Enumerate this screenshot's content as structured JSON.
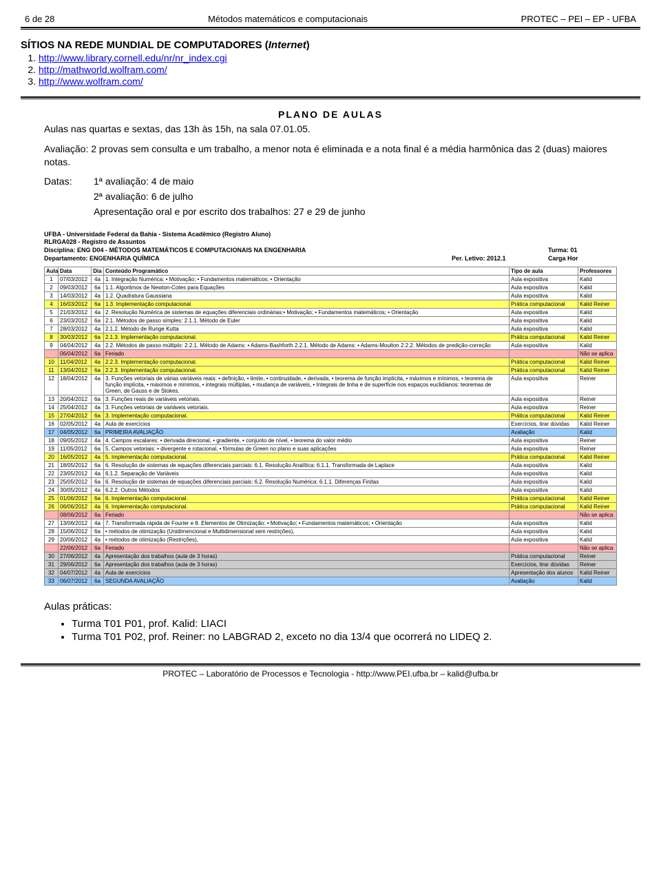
{
  "header": {
    "page_num": "6 de 28",
    "title": "Métodos matemáticos e computacionais",
    "right": "PROTEC – PEI – EP - UFBA"
  },
  "sites_section": {
    "title_prefix": "SÍTIOS NA REDE MUNDIAL DE COMPUTADORES (",
    "title_italic": "Internet",
    "title_suffix": ")",
    "links": [
      "http://www.library.cornell.edu/nr/nr_index.cgi",
      "http://mathworld.wolfram.com/",
      "http://www.wolfram.com/"
    ]
  },
  "plano": {
    "title": "PLANO DE AULAS",
    "p1": "Aulas nas quartas e sextas, das 13h às 15h, na sala 07.01.05.",
    "p2": "Avaliação: 2 provas sem consulta e um trabalho, a menor nota é eliminada e a nota final é a média harmônica das 2 (duas) maiores notas.",
    "datas_label": "Datas:",
    "datas_lines": [
      "1ª avaliação: 4 de maio",
      "2ª avaliação: 6 de julho",
      "Apresentação oral e por escrito dos trabalhos: 27 e 29 de junho"
    ]
  },
  "meta": {
    "l1": "UFBA - Universidade Federal da Bahia - Sistema Acadêmico (Registro Aluno)",
    "l2": "RLRGA028 - Registro de Assuntos",
    "l3_left": "Disciplina: ENG D04 - MÉTODOS MATEMÁTICOS E COMPUTACIONAIS NA ENGENHARIA",
    "l3_right": "Turma: 01",
    "l4_left": "Departamento: ENGENHARIA QUÍMICA",
    "l4_mid": "Per. Letivo: 2012.1",
    "l4_right": "Carga Hor"
  },
  "table": {
    "headers": [
      "Aula",
      "Data",
      "Dia",
      "Conteúdo Programático",
      "Tipo de aula",
      "Professores"
    ],
    "colors": {
      "none": "#ffffff",
      "yellow": "#ffff66",
      "pink": "#ffb3b3",
      "blue": "#99ccff",
      "gray": "#cccccc"
    },
    "rows": [
      {
        "a": "1",
        "d": "07/03/2012",
        "dia": "4a",
        "c": "1. Integração Numérica: • Motivação; • Fundamentos matemáticos; • Orientação",
        "t": "Aula expositiva",
        "p": "Kalid",
        "bg": "none"
      },
      {
        "a": "2",
        "d": "09/03/2012",
        "dia": "6a",
        "c": "1.1. Algoritmos de Newton-Cotes para Equações",
        "t": "Aula expositiva",
        "p": "Kalid",
        "bg": "none"
      },
      {
        "a": "3",
        "d": "14/03/2012",
        "dia": "4a",
        "c": "1.2. Quadratura Gaussiana",
        "t": "Aula expositiva",
        "p": "Kalid",
        "bg": "none"
      },
      {
        "a": "4",
        "d": "16/03/2012",
        "dia": "6a",
        "c": "1.3. Implementação computacional",
        "t": "Prática computacional",
        "p": "Kalid Reiner",
        "bg": "yellow"
      },
      {
        "a": "5",
        "d": "21/03/2012",
        "dia": "4a",
        "c": "2. Resolução Numérica de sistemas de equações diferenciais ordinárias:• Motivação; • Fundamentos matemáticos; • Orientação",
        "t": "Aula expositiva",
        "p": "Kalid",
        "bg": "none"
      },
      {
        "a": "6",
        "d": "23/03/2012",
        "dia": "6a",
        "c": "2.1. Métodos de passo simples: 2.1.1. Método de Euler",
        "t": "Aula expositiva",
        "p": "Kalid",
        "bg": "none"
      },
      {
        "a": "7",
        "d": "28/03/2012",
        "dia": "4a",
        "c": "2.1.2. Método de Runge Kutta",
        "t": "Aula expositiva",
        "p": "Kalid",
        "bg": "none"
      },
      {
        "a": "8",
        "d": "30/03/2012",
        "dia": "6a",
        "c": "2.1.3. Implementação computacional.",
        "t": "Prática computacional",
        "p": "Kalid Reiner",
        "bg": "yellow"
      },
      {
        "a": "9",
        "d": "04/04/2012",
        "dia": "4a",
        "c": "2.2. Métodos de passo múltiplo: 2.2.1. Método de Adams: • Adams-Bashforth 2.2.1. Método de Adams: • Adams-Moulton 2.2.2. Métodos de predição-correção",
        "t": "Aula expositiva",
        "p": "Kalid",
        "bg": "none"
      },
      {
        "a": "",
        "d": "06/04/2012",
        "dia": "6a",
        "c": "Feriado",
        "t": "",
        "p": "Não se aplica",
        "bg": "pink"
      },
      {
        "a": "10",
        "d": "11/04/2012",
        "dia": "4a",
        "c": "2.2.3. Implementação computacional.",
        "t": "Prática computacional",
        "p": "Kalid Reiner",
        "bg": "yellow"
      },
      {
        "a": "11",
        "d": "13/04/2012",
        "dia": "6a",
        "c": "2.2.3. Implementação computacional.",
        "t": "Prática computacional",
        "p": "Kalid Reiner",
        "bg": "yellow"
      },
      {
        "a": "12",
        "d": "18/04/2012",
        "dia": "4a",
        "c": "3. Funções vetoriais de várias variáveis reais: • definição, • limite, • continuidade, • derivada, • teorema de função implícita, • máximos e mínimos, • teorema de função implícita, • máximos e mínimos, • integrais múltiplas, • mudança de variáveis, • Integrais de linha e de superfície nos espaços euclidianos: teoremas de Green, de Gauss e de Stokes.",
        "t": "Aula expositiva",
        "p": "Reiner",
        "bg": "none"
      },
      {
        "a": "13",
        "d": "20/04/2012",
        "dia": "6a",
        "c": "3. Funções reais de variáveis vetoriais.",
        "t": "Aula expositiva",
        "p": "Reiner",
        "bg": "none"
      },
      {
        "a": "14",
        "d": "25/04/2012",
        "dia": "4a",
        "c": "3. Funções vetoriais de variáveis vetoriais.",
        "t": "Aula expositiva",
        "p": "Reiner",
        "bg": "none"
      },
      {
        "a": "15",
        "d": "27/04/2012",
        "dia": "6a",
        "c": "3. Implementação computacional.",
        "t": "Prática computacional",
        "p": "Kalid Reiner",
        "bg": "yellow"
      },
      {
        "a": "16",
        "d": "02/05/2012",
        "dia": "4a",
        "c": "Aula de exercícios",
        "t": "Exercícios, tirar dúvidas",
        "p": "Kalid Reiner",
        "bg": "none"
      },
      {
        "a": "17",
        "d": "04/05/2012",
        "dia": "6a",
        "c": "PRIMEIRA AVALIAÇÃO",
        "t": "Avaliação",
        "p": "Kalid",
        "bg": "blue"
      },
      {
        "a": "18",
        "d": "09/05/2012",
        "dia": "4a",
        "c": "4. Campos escalares: • derivada direcional, • gradiente, • conjunto de nível, • teorema do valor médio",
        "t": "Aula expositiva",
        "p": "Reiner",
        "bg": "none"
      },
      {
        "a": "19",
        "d": "11/05/2012",
        "dia": "6a",
        "c": "5. Campos vetoriais: • divergente e rotacional, • fórmulas de Green no plano e suas aplicações",
        "t": "Aula expositiva",
        "p": "Reiner",
        "bg": "none"
      },
      {
        "a": "20",
        "d": "16/05/2012",
        "dia": "4a",
        "c": "5. Implementação computacional.",
        "t": "Prática computacional",
        "p": "Kalid Reiner",
        "bg": "yellow"
      },
      {
        "a": "21",
        "d": "18/05/2012",
        "dia": "6a",
        "c": "6. Resolução de sistemas de equações diferenciais parciais: 6.1. Resolução Analítica:    6.1.1. Transformada de Laplace",
        "t": "Aula expositiva",
        "p": "Kalid",
        "bg": "none"
      },
      {
        "a": "22",
        "d": "23/05/2012",
        "dia": "4a",
        "c": "6.1.2. Separação de Variáveis",
        "t": "Aula expositiva",
        "p": "Kalid",
        "bg": "none"
      },
      {
        "a": "23",
        "d": "25/05/2012",
        "dia": "6a",
        "c": "6. Resolução de sistemas de equações diferenciais parciais: 6.2. Resolução Numérica: 6.1.1. Diferenças Finitas",
        "t": "Aula expositiva",
        "p": "Kalid",
        "bg": "none"
      },
      {
        "a": "24",
        "d": "30/05/2012",
        "dia": "4a",
        "c": "6.2.2. Outros Métodos",
        "t": "Aula expositiva",
        "p": "Kalid",
        "bg": "none"
      },
      {
        "a": "25",
        "d": "01/06/2012",
        "dia": "6a",
        "c": "6. Implementação computacional.",
        "t": "Prática computacional",
        "p": "Kalid Reiner",
        "bg": "yellow"
      },
      {
        "a": "26",
        "d": "06/06/2012",
        "dia": "4a",
        "c": "6. Implementação computacional.",
        "t": "Prática computacional",
        "p": "Kalid Reiner",
        "bg": "yellow"
      },
      {
        "a": "",
        "d": "08/06/2012",
        "dia": "6a",
        "c": "Feriado",
        "t": "",
        "p": "Não se aplica",
        "bg": "pink"
      },
      {
        "a": "27",
        "d": "13/06/2012",
        "dia": "4a",
        "c": "7. Transformada rápida de Fourier e 8. Elementos de Otimização: • Motivação; • Fundamentos matemáticos; • Orientação",
        "t": "Aula expositiva",
        "p": "Kalid",
        "bg": "none"
      },
      {
        "a": "28",
        "d": "15/06/2012",
        "dia": "6a",
        "c": "• métodos de otimização (Unidimencional e Multidimensional sem restrições),",
        "t": "Aula expositiva",
        "p": "Kalid",
        "bg": "none"
      },
      {
        "a": "29",
        "d": "20/06/2012",
        "dia": "4a",
        "c": "• métodos de otimização (Restrições),",
        "t": "Aula expositiva",
        "p": "Kalid",
        "bg": "none"
      },
      {
        "a": "",
        "d": "22/06/2012",
        "dia": "6a",
        "c": "Feriado",
        "t": "",
        "p": "Não se aplica",
        "bg": "pink"
      },
      {
        "a": "30",
        "d": "27/06/2012",
        "dia": "4a",
        "c": "Apresentação dos trabalhos (aula de 3 horas)",
        "t": "Prática computacional",
        "p": "Reiner",
        "bg": "gray"
      },
      {
        "a": "31",
        "d": "29/06/2012",
        "dia": "6a",
        "c": "Apresentação dos trabalhos (aula de 3 horas)",
        "t": "Exercícios, tirar dúvidas",
        "p": "Reiner",
        "bg": "gray"
      },
      {
        "a": "32",
        "d": "04/07/2012",
        "dia": "4a",
        "c": "Aula de exercícios",
        "t": "Apresentação dos alunos",
        "p": "Kalid Reiner",
        "bg": "gray"
      },
      {
        "a": "33",
        "d": "06/07/2012",
        "dia": "6a",
        "c": "SEGUNDA AVALIAÇÃO",
        "t": "Avaliação",
        "p": "Kalid",
        "bg": "blue"
      }
    ]
  },
  "praticas": {
    "title": "Aulas práticas:",
    "items": [
      "Turma T01 P01, prof. Kalid: LIACI",
      "Turma T01 P02, prof. Reiner: no LABGRAD 2, exceto no dia 13/4 que ocorrerá no LIDEQ 2."
    ]
  },
  "footer": "PROTEC – Laboratório de Processos e Tecnologia - http://www.PEI.ufba.br – kalid@ufba.br"
}
